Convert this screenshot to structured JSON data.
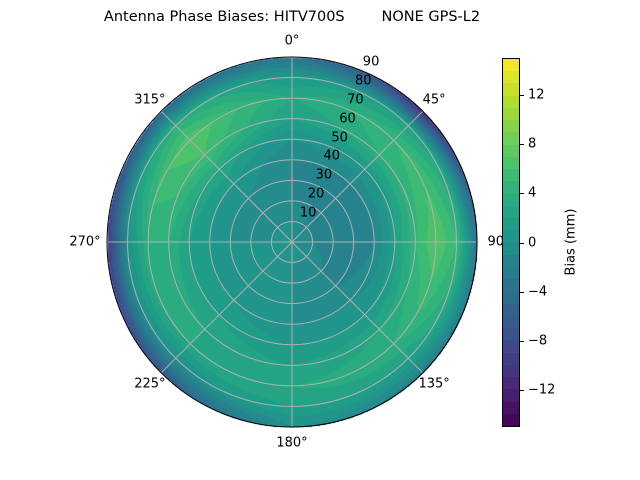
{
  "chart_data": {
    "type": "heatmap",
    "projection": "polar",
    "title": "Antenna Phase Biases: HITV700S        NONE GPS-L2",
    "theta_direction": "clockwise",
    "theta_zero": "north",
    "theta_tick_labels": [
      "0°",
      "45°",
      "90°",
      "135°",
      "180°",
      "225°",
      "270°",
      "315°"
    ],
    "theta_ticks": [
      0,
      45,
      90,
      135,
      180,
      225,
      270,
      315
    ],
    "r_ticks": [
      10,
      20,
      30,
      40,
      50,
      60,
      70,
      80,
      90
    ],
    "r_tick_labels": [
      "10",
      "20",
      "30",
      "40",
      "50",
      "60",
      "70",
      "80",
      "90"
    ],
    "rlim": [
      0,
      90
    ],
    "grid": true,
    "colormap": "viridis",
    "colorbar": {
      "label": "Bias (mm)",
      "range": [
        -15,
        15
      ],
      "ticks": [
        -12,
        -8,
        -4,
        0,
        4,
        8,
        12
      ],
      "tick_labels": [
        "−12",
        "−8",
        "−4",
        "0",
        "4",
        "8",
        "12"
      ],
      "level_step": 1
    },
    "zenith": [
      0,
      10,
      20,
      30,
      40,
      50,
      60,
      70,
      80,
      90
    ],
    "azimuth": [
      0,
      45,
      90,
      135,
      180,
      225,
      270,
      315
    ],
    "values": [
      [
        0,
        0,
        0,
        0,
        0,
        0,
        0,
        0
      ],
      [
        0,
        -1,
        -1,
        0,
        0,
        0,
        0,
        0
      ],
      [
        -1,
        -2,
        -2,
        -1,
        0,
        0,
        0,
        -1
      ],
      [
        -1,
        -2,
        -2,
        -1,
        0,
        0,
        0,
        0
      ],
      [
        -1,
        -1,
        -1,
        0,
        0,
        1,
        1,
        1
      ],
      [
        0,
        1,
        2,
        1,
        1,
        2,
        2,
        3
      ],
      [
        2,
        4,
        5,
        3,
        2,
        3,
        4,
        6
      ],
      [
        3,
        5,
        7,
        4,
        3,
        3,
        4,
        7
      ],
      [
        1,
        2,
        5,
        2,
        2,
        0,
        0,
        4
      ],
      [
        -3,
        -11,
        -3,
        -2,
        0,
        -7,
        -10,
        -5
      ]
    ]
  }
}
